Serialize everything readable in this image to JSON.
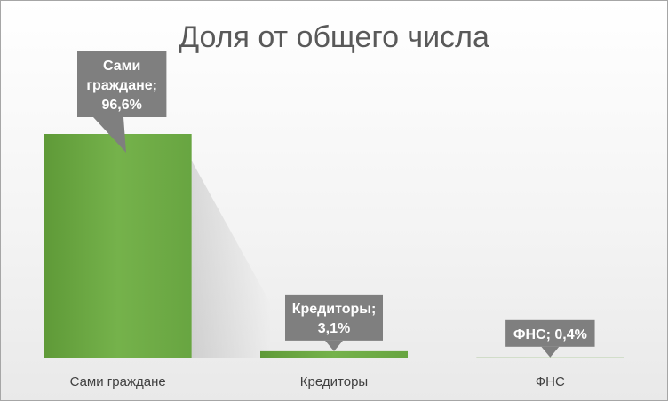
{
  "chart_data": {
    "type": "bar",
    "title": "Доля от общего числа",
    "categories": [
      "Сами граждане",
      "Кредиторы",
      "ФНС"
    ],
    "values": [
      96.6,
      3.1,
      0.4
    ],
    "unit": "%",
    "data_labels": [
      [
        "Сами",
        "граждане;",
        "96,6%"
      ],
      [
        "Кредиторы;",
        "3,1%"
      ],
      [
        "ФНС; 0,4%"
      ]
    ],
    "legend": "none",
    "grid": false,
    "colors": {
      "bar": "#70ad47",
      "label_bg": "#7f7f7f",
      "text": "#595959"
    }
  }
}
